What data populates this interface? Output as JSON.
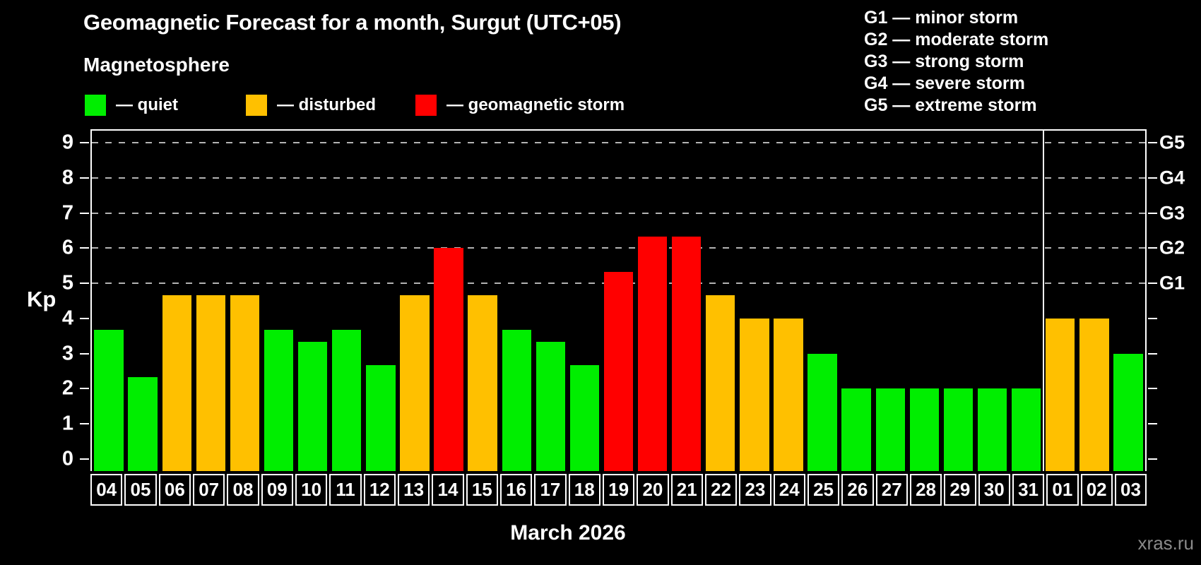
{
  "title": "Geomagnetic Forecast for a month, Surgut (UTC+05)",
  "subtitle": "Magnetosphere",
  "legend": {
    "items": [
      {
        "key": "quiet",
        "label": "— quiet",
        "color": "#00ee00"
      },
      {
        "key": "disturbed",
        "label": "— disturbed",
        "color": "#ffc000"
      },
      {
        "key": "storm",
        "label": "— geomagnetic storm",
        "color": "#ff0000"
      }
    ]
  },
  "g_scale_legend": [
    "G1 — minor storm",
    "G2 — moderate storm",
    "G3 — strong storm",
    "G4 — severe storm",
    "G5 — extreme storm"
  ],
  "axis": {
    "y_label": "Kp",
    "x_label": "March 2026"
  },
  "watermark": "xras.ru",
  "chart_data": {
    "type": "bar",
    "title": "Geomagnetic Forecast for a month, Surgut (UTC+05)",
    "xlabel": "March 2026",
    "ylabel": "Kp",
    "categories": [
      "04",
      "05",
      "06",
      "07",
      "08",
      "09",
      "10",
      "11",
      "12",
      "13",
      "14",
      "15",
      "16",
      "17",
      "18",
      "19",
      "20",
      "21",
      "22",
      "23",
      "24",
      "25",
      "26",
      "27",
      "28",
      "29",
      "30",
      "31",
      "01",
      "02",
      "03"
    ],
    "values": [
      3.67,
      2.33,
      4.67,
      4.67,
      4.67,
      3.67,
      3.33,
      3.67,
      2.67,
      4.67,
      6.0,
      4.67,
      3.67,
      3.33,
      2.67,
      5.33,
      6.33,
      6.33,
      4.67,
      4.0,
      4.0,
      3.0,
      2.0,
      2.0,
      2.0,
      2.0,
      2.0,
      2.0,
      4.0,
      4.0,
      3.0
    ],
    "status": [
      "quiet",
      "quiet",
      "disturbed",
      "disturbed",
      "disturbed",
      "quiet",
      "quiet",
      "quiet",
      "quiet",
      "disturbed",
      "storm",
      "disturbed",
      "quiet",
      "quiet",
      "quiet",
      "storm",
      "storm",
      "storm",
      "disturbed",
      "disturbed",
      "disturbed",
      "quiet",
      "quiet",
      "quiet",
      "quiet",
      "quiet",
      "quiet",
      "quiet",
      "disturbed",
      "disturbed",
      "quiet"
    ],
    "colors": {
      "quiet": "#00ee00",
      "disturbed": "#ffc000",
      "storm": "#ff0000"
    },
    "ylim": [
      -0.35,
      9.35
    ],
    "yticks": [
      0,
      1,
      2,
      3,
      4,
      5,
      6,
      7,
      8,
      9
    ],
    "gridlines": [
      {
        "value": 5,
        "label": "G1"
      },
      {
        "value": 6,
        "label": "G2"
      },
      {
        "value": 7,
        "label": "G3"
      },
      {
        "value": 8,
        "label": "G4"
      },
      {
        "value": 9,
        "label": "G5"
      }
    ],
    "month_boundary_index": 28,
    "grid": "dashed horizontal lines at storm levels G1–G5",
    "legend_position": "top-left"
  }
}
